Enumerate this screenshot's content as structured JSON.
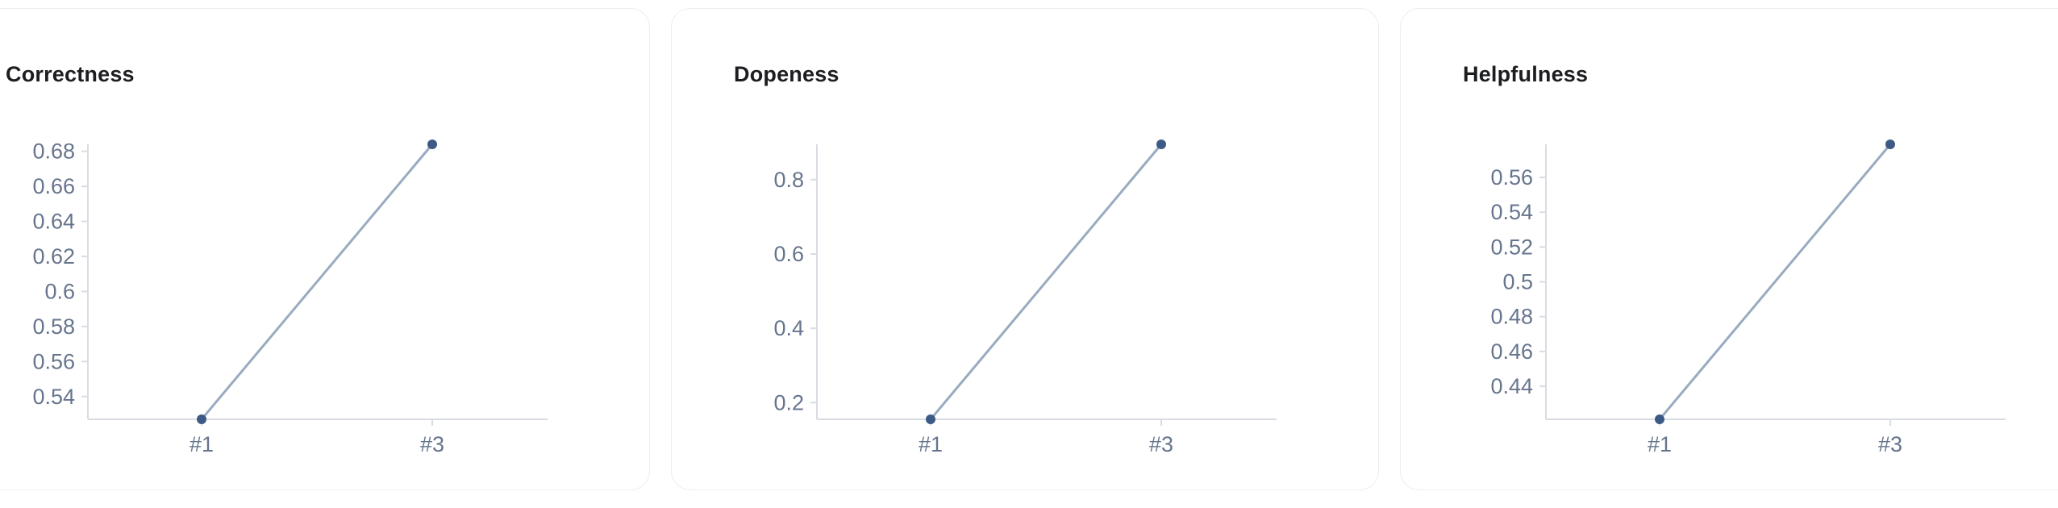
{
  "colors": {
    "line": "#9aaac0",
    "point": "#3d5a86",
    "axis": "#d9dce3",
    "tick_text": "#66758d",
    "title_text": "#1c1d21"
  },
  "chart_data": [
    {
      "type": "line",
      "title": "Correctness",
      "categories": [
        "#1",
        "#3"
      ],
      "series": [
        {
          "values": [
            0.527,
            0.684
          ]
        }
      ],
      "yticks": [
        0.54,
        0.56,
        0.58,
        0.6,
        0.62,
        0.64,
        0.66,
        0.68
      ],
      "ytick_labels": [
        "0.54",
        "0.56",
        "0.58",
        "0.6",
        "0.62",
        "0.64",
        "0.66",
        "0.68"
      ],
      "ylim": [
        0.527,
        0.684
      ],
      "grid": false
    },
    {
      "type": "line",
      "title": "Dopeness",
      "categories": [
        "#1",
        "#3"
      ],
      "series": [
        {
          "values": [
            0.155,
            0.895
          ]
        }
      ],
      "yticks": [
        0.2,
        0.4,
        0.6,
        0.8
      ],
      "ytick_labels": [
        "0.2",
        "0.4",
        "0.6",
        "0.8"
      ],
      "ylim": [
        0.155,
        0.895
      ],
      "grid": false
    },
    {
      "type": "line",
      "title": "Helpfulness",
      "categories": [
        "#1",
        "#3"
      ],
      "series": [
        {
          "values": [
            0.421,
            0.579
          ]
        }
      ],
      "yticks": [
        0.44,
        0.46,
        0.48,
        0.5,
        0.52,
        0.54,
        0.56
      ],
      "ytick_labels": [
        "0.44",
        "0.46",
        "0.48",
        "0.5",
        "0.52",
        "0.54",
        "0.56"
      ],
      "ylim": [
        0.421,
        0.579
      ],
      "grid": false
    }
  ]
}
